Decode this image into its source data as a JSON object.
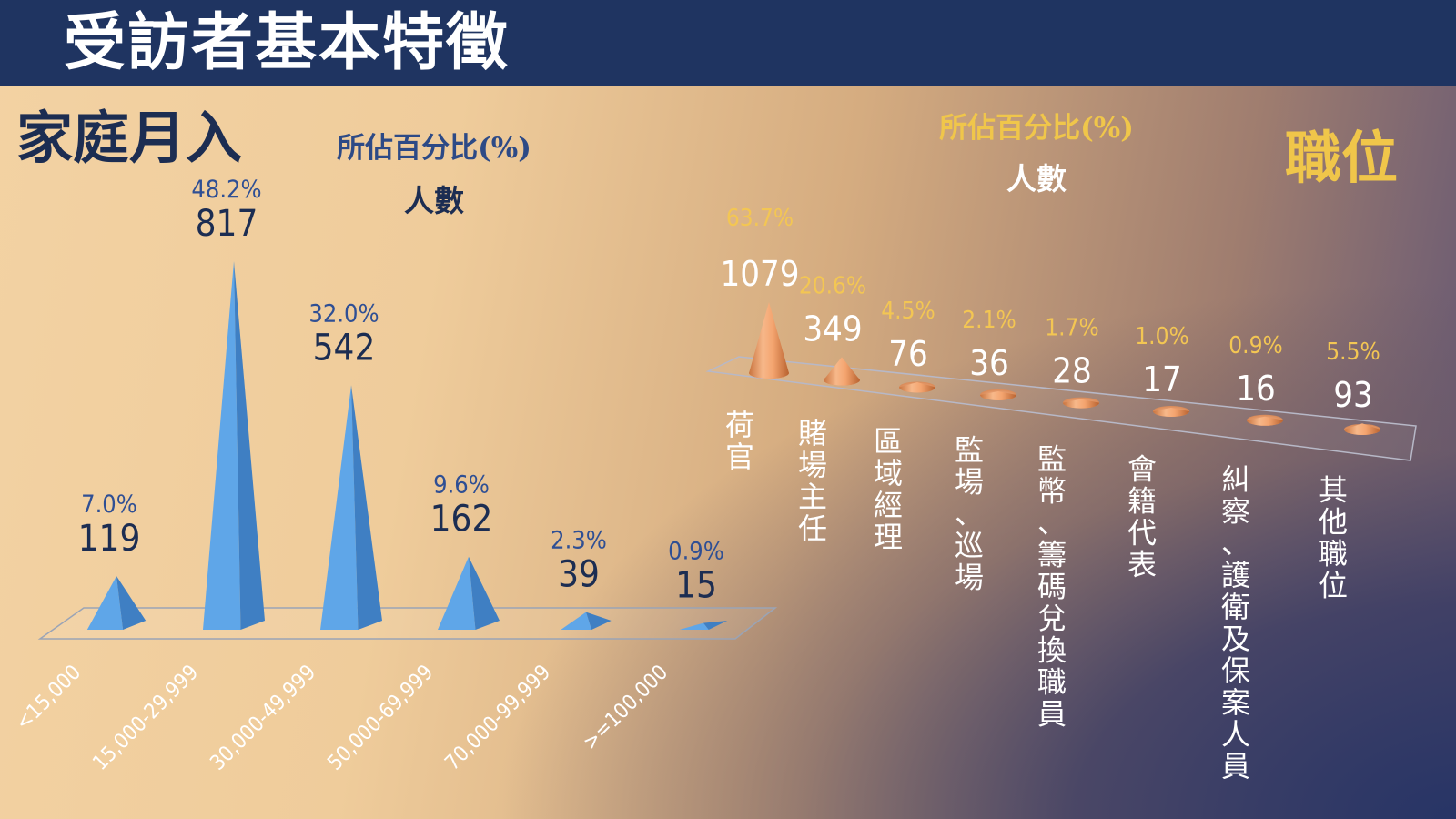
{
  "header": {
    "title": "受訪者基本特徵"
  },
  "colors": {
    "title_bar": "#1f3461",
    "income_pyramid": "#5b9bd5",
    "position_cone": "#f4a46f",
    "position_accent": "#f0c64a"
  },
  "chart_data": [
    {
      "type": "bar",
      "mark": "pyramid",
      "title": "家庭月入",
      "legend": {
        "percent_label": "所佔百分比(%)",
        "count_label": "人數"
      },
      "categories": [
        "<15,000",
        "15,000-29,999",
        "30,000-49,999",
        "50,000-69,999",
        "70,000-99,999",
        ">=100,000"
      ],
      "series": [
        {
          "name": "人數",
          "values": [
            119,
            817,
            542,
            162,
            39,
            15
          ]
        },
        {
          "name": "所佔百分比(%)",
          "values": [
            "7.0%",
            "48.2%",
            "32.0%",
            "9.6%",
            "2.3%",
            "0.9%"
          ]
        }
      ]
    },
    {
      "type": "bar",
      "mark": "cone",
      "title": "職位",
      "legend": {
        "percent_label": "所佔百分比(%)",
        "count_label": "人數"
      },
      "categories": [
        "荷官",
        "賭場主任",
        "區域經理",
        "監場、巡場",
        "監幣、籌碼兌換職員",
        "會籍代表",
        "糾察、護衛及保案人員",
        "其他職位"
      ],
      "series": [
        {
          "name": "人數",
          "values": [
            1079,
            349,
            76,
            36,
            28,
            17,
            16,
            93
          ]
        },
        {
          "name": "所佔百分比(%)",
          "values": [
            "63.7%",
            "20.6%",
            "4.5%",
            "2.1%",
            "1.7%",
            "1.0%",
            "0.9%",
            "5.5%"
          ]
        }
      ]
    }
  ]
}
